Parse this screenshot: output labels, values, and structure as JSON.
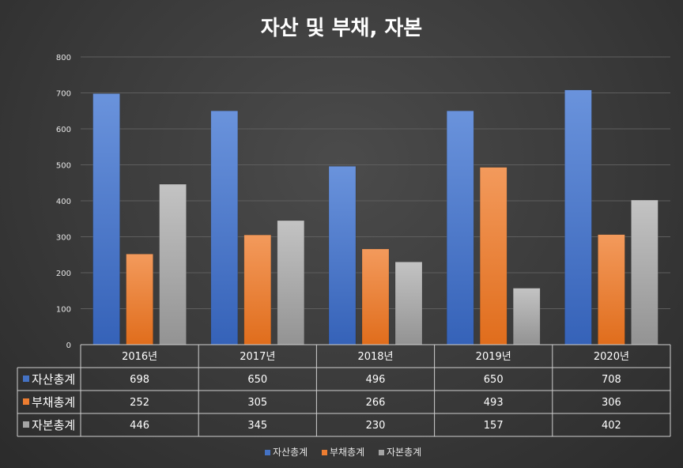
{
  "chart_data": {
    "type": "bar",
    "title": "자산 및 부채, 자본",
    "categories": [
      "2016년",
      "2017년",
      "2018년",
      "2019년",
      "2020년"
    ],
    "series": [
      {
        "name": "자산총계",
        "color": "#4472c4",
        "values": [
          698,
          650,
          496,
          650,
          708
        ]
      },
      {
        "name": "부채총계",
        "color": "#ed7d31",
        "values": [
          252,
          305,
          266,
          493,
          306
        ]
      },
      {
        "name": "자본총계",
        "color": "#a5a5a5",
        "values": [
          446,
          345,
          230,
          157,
          402
        ]
      }
    ],
    "ylim": [
      0,
      800
    ],
    "yticks": [
      0,
      100,
      200,
      300,
      400,
      500,
      600,
      700,
      800
    ],
    "grid": true,
    "data_table": true,
    "legend": "bottom"
  }
}
